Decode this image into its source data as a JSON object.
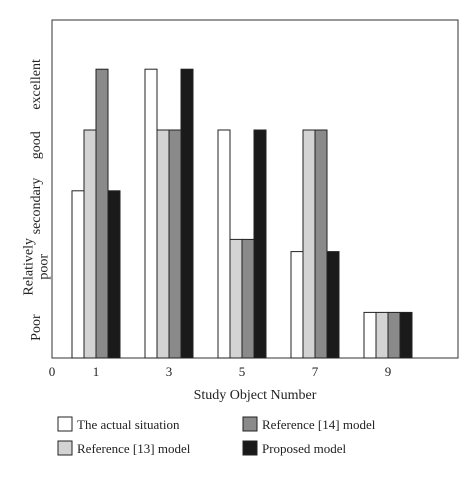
{
  "chart_data": {
    "type": "bar",
    "title": "",
    "xlabel": "Study Object Number",
    "ylabel": "",
    "x_origin_label": "0",
    "categories": [
      "1",
      "3",
      "5",
      "7",
      "9"
    ],
    "y_levels": [
      "Poor",
      "Relatively poor",
      "secondary",
      "good",
      "excellent"
    ],
    "ylim": [
      0,
      5
    ],
    "grid": false,
    "legend_position": "bottom",
    "series": [
      {
        "name": "The actual situation",
        "color": "#ffffff",
        "values": [
          2.75,
          4.75,
          3.75,
          1.75,
          0.75
        ]
      },
      {
        "name": "Reference [13] model",
        "color": "#d3d3d3",
        "values": [
          3.75,
          3.75,
          1.95,
          3.75,
          0.75
        ]
      },
      {
        "name": "Reference [14] model",
        "color": "#8a8a8a",
        "values": [
          4.75,
          3.75,
          1.95,
          3.75,
          0.75
        ]
      },
      {
        "name": "Proposed model",
        "color": "#1a1a1a",
        "values": [
          2.75,
          4.75,
          3.75,
          1.75,
          0.75
        ]
      }
    ]
  }
}
